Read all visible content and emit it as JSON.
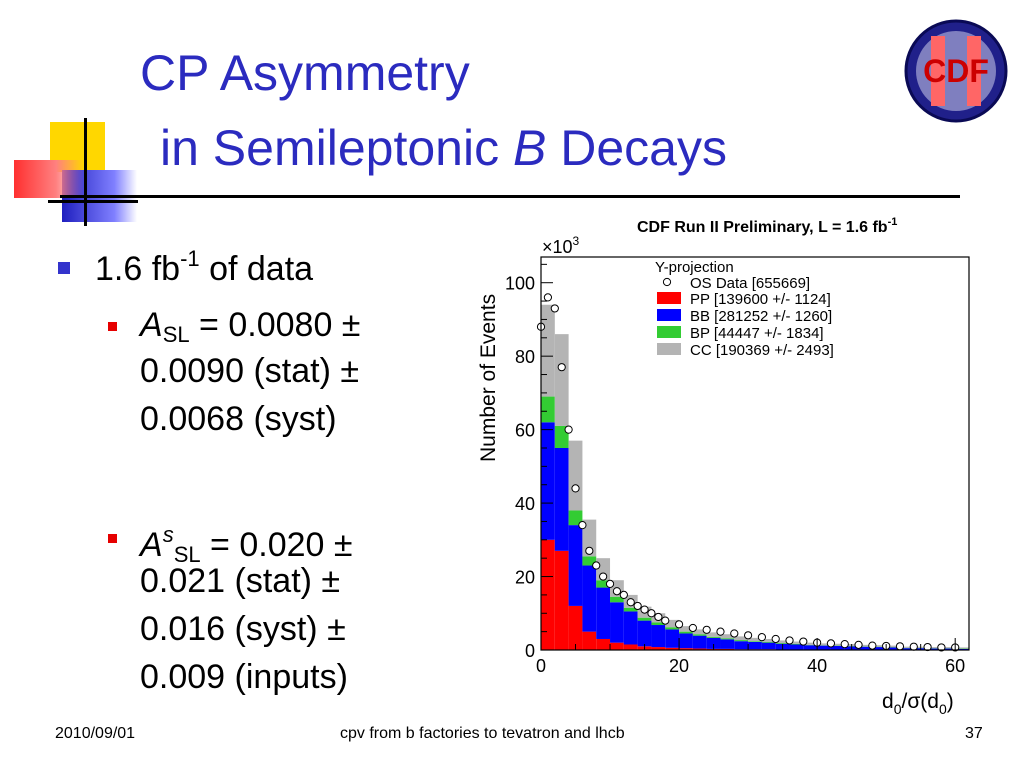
{
  "slide": {
    "title_line1": "CP Asymmetry",
    "title_line2_pre": "in Semileptonic ",
    "title_line2_b": "B",
    "title_line2_post": " Decays",
    "logo_text": "CDF",
    "bullets": {
      "b1_main": "1.6 fb",
      "b1_sup": "-1",
      "b1_post": " of data",
      "a_sl_symbol": "A",
      "a_sl_sub": "SL",
      "a_sl_line1": " = 0.0080 ±",
      "a_sl_line2": "0.0090 (stat) ±",
      "a_sl_line3": "0.0068 (syst)",
      "as_symbol": "A",
      "as_sup": "s",
      "as_sub": "SL",
      "as_line1": " = 0.020 ±",
      "as_line2": "0.021 (stat) ±",
      "as_line3": "0.016 (syst) ±",
      "as_line4": "0.009 (inputs)"
    },
    "footer": {
      "date": "2010/09/01",
      "center": "cpv from b factories to tevatron and lhcb",
      "page": "37"
    }
  },
  "chart_data": {
    "type": "bar",
    "title": "CDF Run II Preliminary, L = 1.6 fb",
    "title_sup": "-1",
    "legend_title": "Y-projection",
    "legend_placement": "top-right",
    "xlabel": "d0/σ(d0)",
    "ylabel": "Number of Events",
    "y_multiplier": "×10",
    "y_multiplier_exp": "3",
    "xlim": [
      0,
      62
    ],
    "ylim": [
      0,
      107
    ],
    "xticks": [
      0,
      20,
      40,
      60
    ],
    "yticks": [
      0,
      20,
      40,
      60,
      80,
      100
    ],
    "bin_width": 2,
    "x_bin_starts": [
      0,
      2,
      4,
      6,
      8,
      10,
      12,
      14,
      16,
      18,
      20,
      22,
      24,
      26,
      28,
      30,
      32,
      34,
      36,
      38,
      40,
      42,
      44,
      46,
      48,
      50,
      52,
      54,
      56,
      58,
      60
    ],
    "series": [
      {
        "name": "PP [139600 +/- 1124]",
        "color": "#ff0000",
        "values": [
          30,
          27,
          12,
          5,
          3,
          2,
          1.5,
          1,
          0.8,
          0.6,
          0.5,
          0.4,
          0.3,
          0.3,
          0.2,
          0.2,
          0.2,
          0.1,
          0.1,
          0.1,
          0.1,
          0.1,
          0.1,
          0.1,
          0.1,
          0.1,
          0,
          0,
          0,
          0,
          0
        ]
      },
      {
        "name": "BB [281252 +/- 1260]",
        "color": "#0000ff",
        "values": [
          32,
          28,
          22,
          18,
          14,
          11,
          9,
          7,
          6,
          5,
          4,
          3.5,
          3,
          2.6,
          2.2,
          2,
          1.8,
          1.6,
          1.4,
          1.2,
          1.1,
          1,
          0.9,
          0.8,
          0.7,
          0.6,
          0.5,
          0.5,
          0.4,
          0.4,
          0.3
        ]
      },
      {
        "name": "BP [44447 +/- 1834]",
        "color": "#33cc33",
        "values": [
          7,
          6,
          4,
          2.5,
          2,
          1.5,
          1,
          0.8,
          0.7,
          0.6,
          0.5,
          0.4,
          0.3,
          0.3,
          0.3,
          0.2,
          0.2,
          0.2,
          0.2,
          0.1,
          0.1,
          0.1,
          0.1,
          0.1,
          0.1,
          0.1,
          0.1,
          0.1,
          0.1,
          0.1,
          0.1
        ]
      },
      {
        "name": "CC [190369 +/- 2493]",
        "color": "#b4b4b4",
        "values": [
          25,
          25,
          19,
          10,
          6,
          4.5,
          3.5,
          3,
          2.5,
          2,
          1.5,
          1.3,
          1.2,
          1.1,
          1,
          0.9,
          0.8,
          0.7,
          0.6,
          0.6,
          0.5,
          0.5,
          0.5,
          0.4,
          0.4,
          0.4,
          0.3,
          0.3,
          0.3,
          0.3,
          0.3
        ]
      }
    ],
    "data_series": {
      "name": "OS Data [655669]",
      "points": [
        [
          0,
          88
        ],
        [
          1,
          96
        ],
        [
          2,
          93
        ],
        [
          3,
          77
        ],
        [
          4,
          60
        ],
        [
          5,
          44
        ],
        [
          6,
          34
        ],
        [
          7,
          27
        ],
        [
          8,
          23
        ],
        [
          9,
          20
        ],
        [
          10,
          18
        ],
        [
          11,
          16
        ],
        [
          12,
          15
        ],
        [
          13,
          13
        ],
        [
          14,
          12
        ],
        [
          15,
          11
        ],
        [
          16,
          10
        ],
        [
          17,
          9
        ],
        [
          18,
          8
        ],
        [
          20,
          7
        ],
        [
          22,
          6
        ],
        [
          24,
          5.5
        ],
        [
          26,
          5
        ],
        [
          28,
          4.5
        ],
        [
          30,
          4
        ],
        [
          32,
          3.5
        ],
        [
          34,
          3
        ],
        [
          36,
          2.6
        ],
        [
          38,
          2.3
        ],
        [
          40,
          2
        ],
        [
          42,
          1.8
        ],
        [
          44,
          1.6
        ],
        [
          46,
          1.4
        ],
        [
          48,
          1.2
        ],
        [
          50,
          1.1
        ],
        [
          52,
          1
        ],
        [
          54,
          0.9
        ],
        [
          56,
          0.8
        ],
        [
          58,
          0.7
        ],
        [
          60,
          0.7
        ]
      ]
    }
  }
}
